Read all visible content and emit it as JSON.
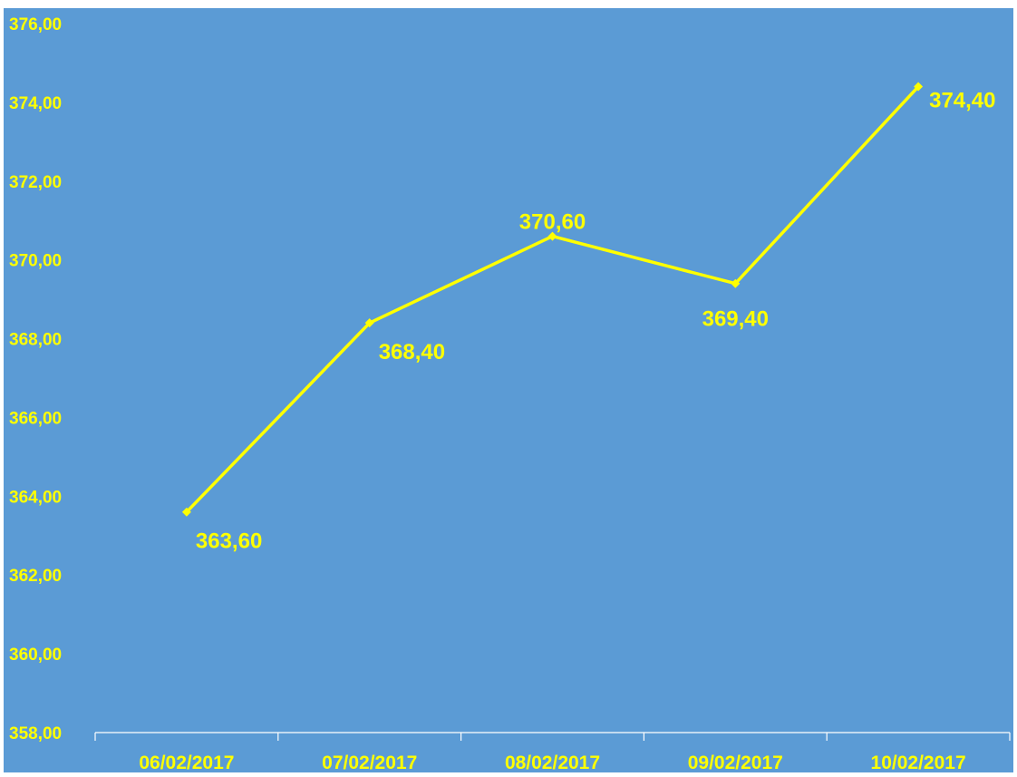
{
  "chart_data": {
    "type": "line",
    "title": "",
    "xlabel": "",
    "ylabel": "",
    "categories": [
      "06/02/2017",
      "07/02/2017",
      "08/02/2017",
      "09/02/2017",
      "10/02/2017"
    ],
    "series": [
      {
        "values": [
          363.6,
          368.4,
          370.6,
          369.4,
          374.4
        ],
        "data_labels": [
          "363,60",
          "368,40",
          "370,60",
          "369,40",
          "374,40"
        ],
        "label_position": [
          "below-right",
          "below-right",
          "above",
          "below",
          "right"
        ]
      }
    ],
    "ylim": [
      358,
      376
    ],
    "y_ticks": [
      "358,00",
      "360,00",
      "362,00",
      "364,00",
      "366,00",
      "368,00",
      "370,00",
      "372,00",
      "374,00",
      "376,00"
    ],
    "grid": false,
    "legend": "none"
  },
  "colors": {
    "background": "#5B9BD5",
    "line": "#FFFF00",
    "text": "#FFFF00",
    "axis": "#FFFFFF"
  }
}
